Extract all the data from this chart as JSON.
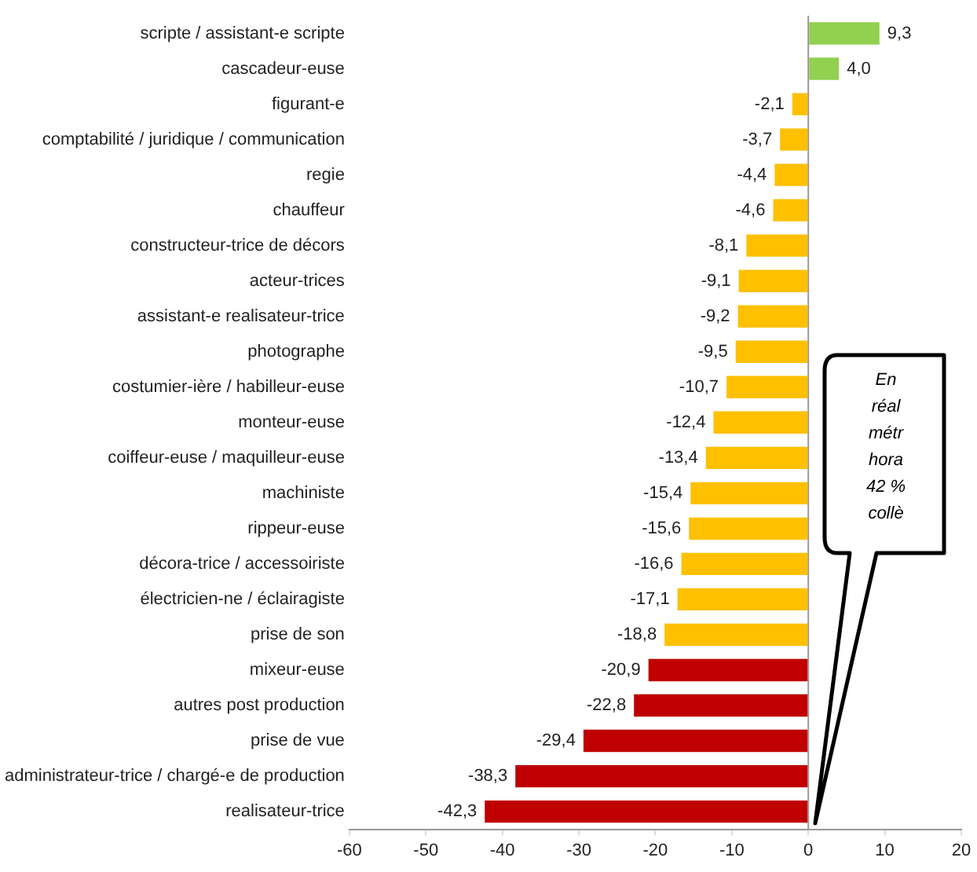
{
  "chart_data": {
    "type": "bar",
    "orientation": "horizontal",
    "categories": [
      "scripte / assistant-e scripte",
      "cascadeur-euse",
      "figurant-e",
      "comptabilité / juridique / communication",
      "regie",
      "chauffeur",
      "constructeur-trice de décors",
      "acteur-trices",
      "assistant-e realisateur-trice",
      "photographe",
      "costumier-ière / habilleur-euse",
      "monteur-euse",
      "coiffeur-euse / maquilleur-euse",
      "machiniste",
      "rippeur-euse",
      "décora-trice / accessoiriste",
      "électricien-ne / éclairagiste",
      "prise de son",
      "mixeur-euse",
      "autres post production",
      "prise de vue",
      "administrateur-trice / chargé-e de production",
      "realisateur-trice"
    ],
    "values": [
      9.3,
      4.0,
      -2.1,
      -3.7,
      -4.4,
      -4.6,
      -8.1,
      -9.1,
      -9.2,
      -9.5,
      -10.7,
      -12.4,
      -13.4,
      -15.4,
      -15.6,
      -16.6,
      -17.1,
      -18.8,
      -20.9,
      -22.8,
      -29.4,
      -38.3,
      -42.3
    ],
    "value_labels": [
      "9,3",
      "4,0",
      "-2,1",
      "-3,7",
      "-4,4",
      "-4,6",
      "-8,1",
      "-9,1",
      "-9,2",
      "-9,5",
      "-10,7",
      "-12,4",
      "-13,4",
      "-15,4",
      "-15,6",
      "-16,6",
      "-17,1",
      "-18,8",
      "-20,9",
      "-22,8",
      "-29,4",
      "-38,3",
      "-42,3"
    ],
    "colors": [
      "#92d050",
      "#92d050",
      "#ffc000",
      "#ffc000",
      "#ffc000",
      "#ffc000",
      "#ffc000",
      "#ffc000",
      "#ffc000",
      "#ffc000",
      "#ffc000",
      "#ffc000",
      "#ffc000",
      "#ffc000",
      "#ffc000",
      "#ffc000",
      "#ffc000",
      "#ffc000",
      "#c00000",
      "#c00000",
      "#c00000",
      "#c00000",
      "#c00000"
    ],
    "xlim": [
      -60,
      20
    ],
    "xticks": [
      -60,
      -50,
      -40,
      -30,
      -20,
      -10,
      0,
      10,
      20
    ],
    "grid": false,
    "legend": false,
    "ref_lines": [
      {
        "axis": "x",
        "value": 0,
        "color": "#999999"
      }
    ],
    "annotations": [
      "En\nréal\nmétr\nhora\n42 %\ncollè"
    ]
  }
}
